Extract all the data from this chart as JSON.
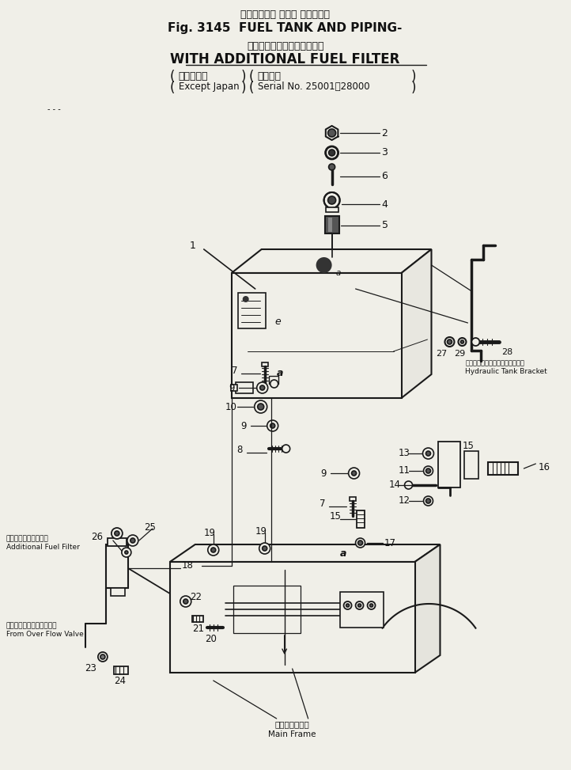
{
  "title_jp": "フェルタンク および パイピング",
  "title_en": "Fig. 3145  FUEL TANK AND PIPING-",
  "subtitle_jp": "増　設　　フェルフイルタ付",
  "subtitle_en": "WITH ADDITIONAL FUEL FILTER",
  "paren1_jp": "海　外　向",
  "paren1_en": "Except Japan",
  "paren2_jp": "適用号機",
  "paren2_en": "Serial No. 25001～28000",
  "label_hydraulic_jp": "ハイドロリックタンクブラケット",
  "label_hydraulic_en": "Hydraulic Tank Bracket",
  "label_additional_jp": "追加フェルフィルター",
  "label_additional_en": "Additional Fuel Filter",
  "label_overflow_jp": "オーバーフローバルブより",
  "label_overflow_en": "From Over Flow Valve",
  "label_mainframe_jp": "メインフレーム",
  "label_mainframe_en": "Main Frame",
  "bg_color": "#f0efe8",
  "line_color": "#1a1a1a",
  "text_color": "#111111"
}
